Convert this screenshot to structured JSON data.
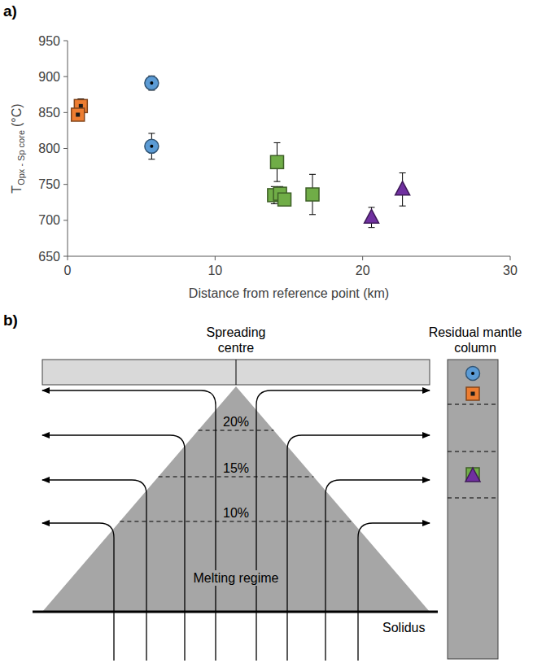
{
  "chart_data": {
    "type": "scatter",
    "x_label": "Distance from reference point (km)",
    "y_label": {
      "main": "T",
      "sub": "Opx - Sp core",
      "unit": "(°C)"
    },
    "xlim": [
      0,
      30
    ],
    "xticks": [
      0,
      10,
      20,
      30
    ],
    "ylim": [
      650,
      950
    ],
    "yticks": [
      650,
      700,
      750,
      800,
      850,
      900,
      950
    ],
    "grid": false,
    "series": [
      {
        "color": "#5b9bd5",
        "marker": "circle-dot",
        "x": [
          5.7,
          5.7
        ],
        "values": [
          891,
          803
        ],
        "errors": [
          10,
          18
        ]
      },
      {
        "color": "#ed7d31",
        "marker": "square-dot",
        "x": [
          0.9,
          0.7
        ],
        "values": [
          859,
          847
        ],
        "errors": [
          10,
          8
        ]
      },
      {
        "color": "#70ad47",
        "marker": "square",
        "x": [
          14.2,
          14.0,
          14.4,
          14.7,
          16.6
        ],
        "values": [
          781,
          735,
          737,
          729,
          736
        ],
        "errors": [
          27,
          12,
          10,
          8,
          28
        ]
      },
      {
        "color": "#7030a0",
        "marker": "triangle",
        "x": [
          20.6,
          22.7
        ],
        "values": [
          704,
          743
        ],
        "errors": [
          14,
          23
        ]
      }
    ]
  },
  "panel_labels": {
    "a": "a)",
    "b": "b)"
  },
  "diagram": {
    "spreading_centre": "Spreading centre",
    "residual_column": "Residual mantle column",
    "melt_fractions": [
      "20%",
      "15%",
      "10%"
    ],
    "melting_regime": "Melting regime",
    "solidus": "Solidus"
  }
}
